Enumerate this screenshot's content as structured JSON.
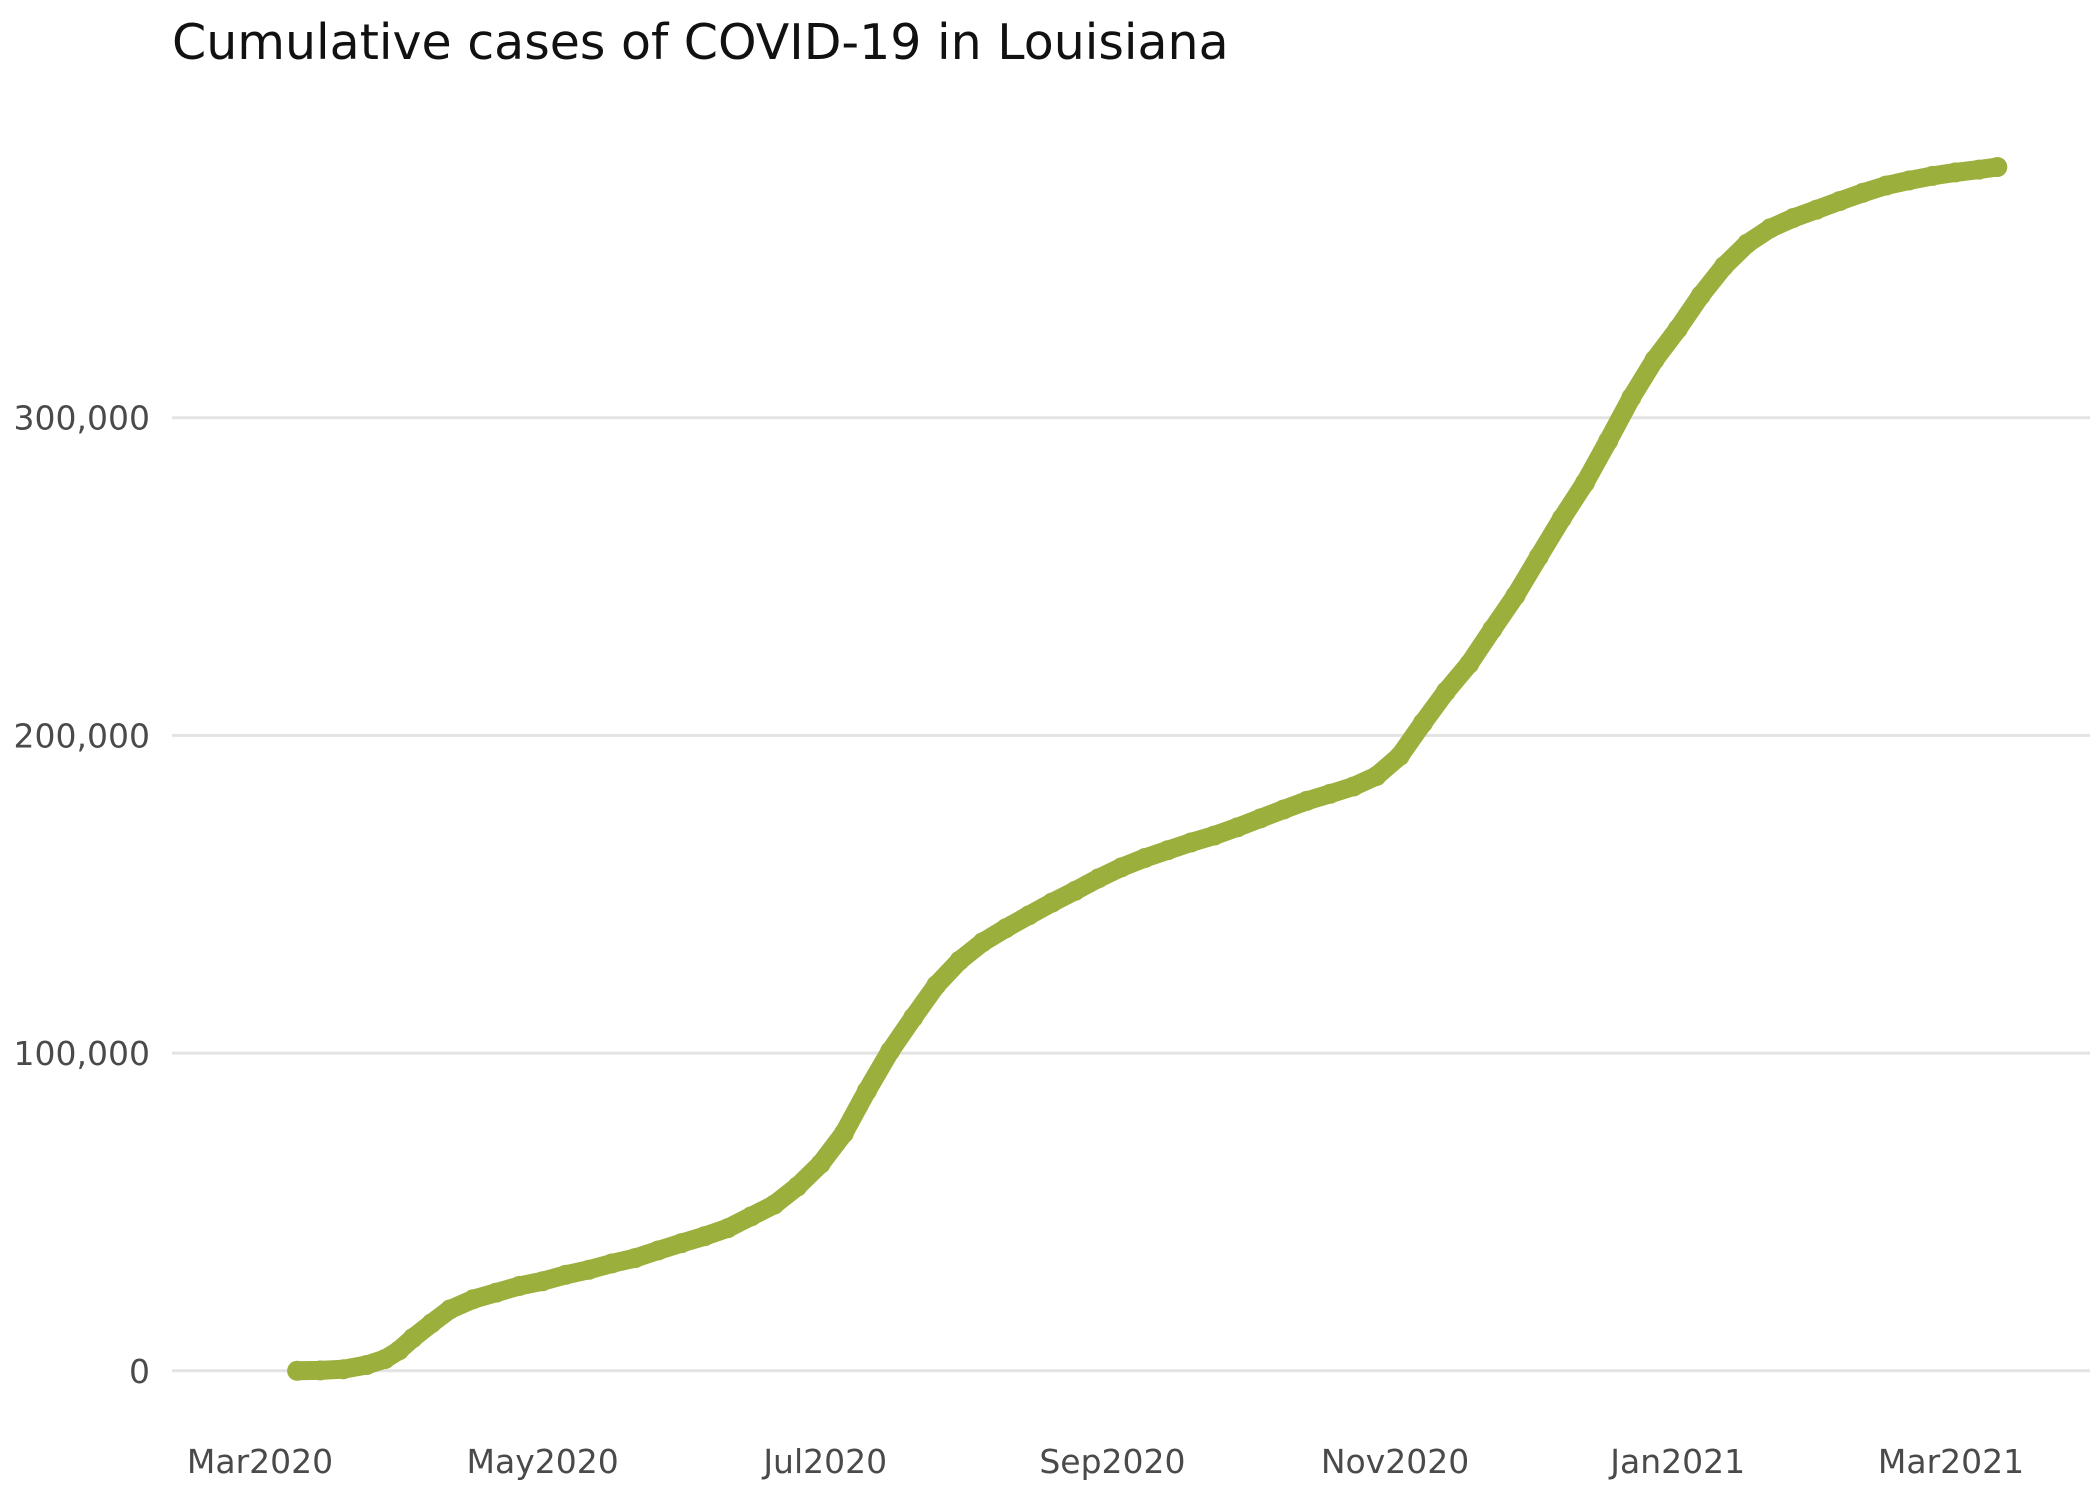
{
  "chart_data": {
    "type": "line",
    "title": "Cumulative cases of COVID-19 in Louisiana",
    "xlabel": "",
    "ylabel": "",
    "x_ticks": [
      {
        "date": "2020-03-01",
        "label": "Mar2020"
      },
      {
        "date": "2020-05-01",
        "label": "May2020"
      },
      {
        "date": "2020-07-01",
        "label": "Jul2020"
      },
      {
        "date": "2020-09-01",
        "label": "Sep2020"
      },
      {
        "date": "2020-11-01",
        "label": "Nov2020"
      },
      {
        "date": "2021-01-01",
        "label": "Jan2021"
      },
      {
        "date": "2021-03-01",
        "label": "Mar2021"
      }
    ],
    "y_ticks": [
      {
        "value": 0,
        "label": "0"
      },
      {
        "value": 100000,
        "label": "100,000"
      },
      {
        "value": 200000,
        "label": "200,000"
      },
      {
        "value": 300000,
        "label": "300,000"
      }
    ],
    "xlim": [
      "2020-02-11",
      "2021-03-31"
    ],
    "ylim": [
      -7000,
      400000
    ],
    "grid": "horizontal",
    "color": "#9aaf3c",
    "series": [
      {
        "points": [
          [
            "2020-03-09",
            0
          ],
          [
            "2020-03-14",
            100
          ],
          [
            "2020-03-19",
            500
          ],
          [
            "2020-03-24",
            1800
          ],
          [
            "2020-03-28",
            3700
          ],
          [
            "2020-03-31",
            6400
          ],
          [
            "2020-04-03",
            10300
          ],
          [
            "2020-04-07",
            14900
          ],
          [
            "2020-04-11",
            19300
          ],
          [
            "2020-04-16",
            22500
          ],
          [
            "2020-04-21",
            24600
          ],
          [
            "2020-04-26",
            26700
          ],
          [
            "2020-05-01",
            28200
          ],
          [
            "2020-05-06",
            30200
          ],
          [
            "2020-05-11",
            31800
          ],
          [
            "2020-05-16",
            33800
          ],
          [
            "2020-05-21",
            35500
          ],
          [
            "2020-05-26",
            37900
          ],
          [
            "2020-05-31",
            40200
          ],
          [
            "2020-06-05",
            42400
          ],
          [
            "2020-06-10",
            44900
          ],
          [
            "2020-06-15",
            48600
          ],
          [
            "2020-06-20",
            52300
          ],
          [
            "2020-06-25",
            58000
          ],
          [
            "2020-06-30",
            65100
          ],
          [
            "2020-07-05",
            74700
          ],
          [
            "2020-07-10",
            88100
          ],
          [
            "2020-07-15",
            100600
          ],
          [
            "2020-07-20",
            111200
          ],
          [
            "2020-07-25",
            121400
          ],
          [
            "2020-07-30",
            129100
          ],
          [
            "2020-08-04",
            134900
          ],
          [
            "2020-08-09",
            139300
          ],
          [
            "2020-08-14",
            143400
          ],
          [
            "2020-08-19",
            147400
          ],
          [
            "2020-08-24",
            151100
          ],
          [
            "2020-08-29",
            155000
          ],
          [
            "2020-09-03",
            158500
          ],
          [
            "2020-09-08",
            161400
          ],
          [
            "2020-09-13",
            163900
          ],
          [
            "2020-09-18",
            166300
          ],
          [
            "2020-09-23",
            168500
          ],
          [
            "2020-09-28",
            171100
          ],
          [
            "2020-10-03",
            173900
          ],
          [
            "2020-10-08",
            176700
          ],
          [
            "2020-10-13",
            179400
          ],
          [
            "2020-10-18",
            181600
          ],
          [
            "2020-10-23",
            183900
          ],
          [
            "2020-10-28",
            187200
          ],
          [
            "2020-11-02",
            193500
          ],
          [
            "2020-11-07",
            203900
          ],
          [
            "2020-11-12",
            213800
          ],
          [
            "2020-11-17",
            222500
          ],
          [
            "2020-11-22",
            233400
          ],
          [
            "2020-11-27",
            244000
          ],
          [
            "2020-12-02",
            256200
          ],
          [
            "2020-12-07",
            268300
          ],
          [
            "2020-12-12",
            279500
          ],
          [
            "2020-12-17",
            292700
          ],
          [
            "2020-12-22",
            306300
          ],
          [
            "2020-12-27",
            318200
          ],
          [
            "2021-01-01",
            327900
          ],
          [
            "2021-01-06",
            338500
          ],
          [
            "2021-01-11",
            347700
          ],
          [
            "2021-01-16",
            354800
          ],
          [
            "2021-01-21",
            359600
          ],
          [
            "2021-01-26",
            362900
          ],
          [
            "2021-01-31",
            365500
          ],
          [
            "2021-02-05",
            368200
          ],
          [
            "2021-02-10",
            370800
          ],
          [
            "2021-02-15",
            373100
          ],
          [
            "2021-02-20",
            374700
          ],
          [
            "2021-02-25",
            376100
          ],
          [
            "2021-03-02",
            377200
          ],
          [
            "2021-03-07",
            378100
          ],
          [
            "2021-03-11",
            378900
          ]
        ]
      }
    ]
  }
}
